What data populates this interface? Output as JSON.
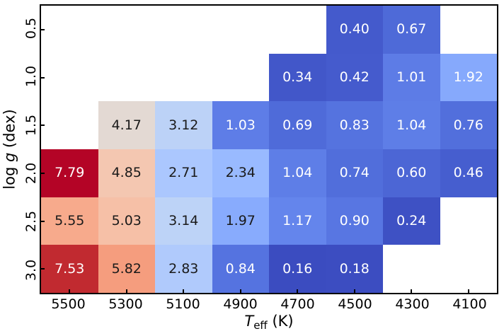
{
  "figure": {
    "background": "#ffffff",
    "border_color": "#000000",
    "tick_color": "#000000"
  },
  "axes": {
    "xlabel": {
      "main": "T",
      "sub": "eff",
      "unit": " (K)"
    },
    "ylabel": {
      "pre": "log ",
      "italic": "g",
      "post": " (dex)"
    },
    "x_ticks": [
      "5500",
      "5300",
      "5100",
      "4900",
      "4700",
      "4500",
      "4300",
      "4100"
    ],
    "y_ticks": [
      "0.5",
      "1.0",
      "1.5",
      "2.0",
      "2.5",
      "3.0"
    ]
  },
  "chart_data": {
    "type": "heatmap",
    "title": "",
    "xlabel": "Teff (K)",
    "ylabel": "log g (dex)",
    "x_categories": [
      "5500",
      "5300",
      "5100",
      "4900",
      "4700",
      "4500",
      "4300",
      "4100"
    ],
    "y_categories": [
      "0.5",
      "1.0",
      "1.5",
      "2.0",
      "2.5",
      "3.0"
    ],
    "colormap": "coolwarm",
    "color_scale": {
      "vmin": 0.16,
      "vmax": 7.79,
      "min_color": "#3b4cc0",
      "mid_color": "#dddddd",
      "max_color": "#b40426"
    },
    "values": [
      [
        null,
        null,
        null,
        null,
        null,
        0.4,
        0.67,
        null
      ],
      [
        null,
        null,
        null,
        null,
        0.34,
        0.42,
        1.01,
        1.92
      ],
      [
        null,
        4.17,
        3.12,
        1.03,
        0.69,
        0.83,
        1.04,
        0.76
      ],
      [
        7.79,
        4.85,
        2.71,
        2.34,
        1.04,
        0.74,
        0.6,
        0.46
      ],
      [
        5.55,
        5.03,
        3.14,
        1.97,
        1.17,
        0.9,
        0.24,
        null
      ],
      [
        7.53,
        5.82,
        2.83,
        0.84,
        0.16,
        0.18,
        null,
        null
      ]
    ],
    "cells": [
      [
        null,
        null,
        null,
        null,
        null,
        {
          "label": "0.40",
          "color": "#445acc",
          "text": "#ffffff"
        },
        {
          "label": "0.67",
          "color": "#4e6ad8",
          "text": "#ffffff"
        },
        null
      ],
      [
        null,
        null,
        null,
        null,
        {
          "label": "0.34",
          "color": "#4257c9",
          "text": "#ffffff"
        },
        {
          "label": "0.42",
          "color": "#455bcd",
          "text": "#ffffff"
        },
        {
          "label": "1.01",
          "color": "#5d7ce6",
          "text": "#ffffff"
        },
        {
          "label": "1.92",
          "color": "#86a9fc",
          "text": "#ffffff"
        }
      ],
      [
        null,
        {
          "label": "4.17",
          "color": "#e3d9d3",
          "text": "#1a1a1a"
        },
        {
          "label": "3.12",
          "color": "#bcd2f7",
          "text": "#1a1a1a"
        },
        {
          "label": "1.03",
          "color": "#5e7de7",
          "text": "#ffffff"
        },
        {
          "label": "0.69",
          "color": "#4f6bd9",
          "text": "#ffffff"
        },
        {
          "label": "0.83",
          "color": "#5573df",
          "text": "#ffffff"
        },
        {
          "label": "1.04",
          "color": "#5e7ee7",
          "text": "#ffffff"
        },
        {
          "label": "0.76",
          "color": "#526fdc",
          "text": "#ffffff"
        }
      ],
      [
        {
          "label": "7.79",
          "color": "#b40426",
          "text": "#ffffff"
        },
        {
          "label": "4.85",
          "color": "#f4c7b1",
          "text": "#1a1a1a"
        },
        {
          "label": "2.71",
          "color": "#abc7fe",
          "text": "#1a1a1a"
        },
        {
          "label": "2.34",
          "color": "#99baff",
          "text": "#1a1a1a"
        },
        {
          "label": "1.04",
          "color": "#5e7ee7",
          "text": "#ffffff"
        },
        {
          "label": "0.74",
          "color": "#516edb",
          "text": "#ffffff"
        },
        {
          "label": "0.60",
          "color": "#4c66d5",
          "text": "#ffffff"
        },
        {
          "label": "0.46",
          "color": "#465ecf",
          "text": "#ffffff"
        }
      ],
      [
        {
          "label": "5.55",
          "color": "#f7aa8c",
          "text": "#1a1a1a"
        },
        {
          "label": "5.03",
          "color": "#f6c0a7",
          "text": "#1a1a1a"
        },
        {
          "label": "3.14",
          "color": "#bdd3f7",
          "text": "#1a1a1a"
        },
        {
          "label": "1.97",
          "color": "#88abfd",
          "text": "#1a1a1a"
        },
        {
          "label": "1.17",
          "color": "#6485ec",
          "text": "#ffffff"
        },
        {
          "label": "0.90",
          "color": "#5876e2",
          "text": "#ffffff"
        },
        {
          "label": "0.24",
          "color": "#3e51c4",
          "text": "#ffffff"
        },
        null
      ],
      [
        {
          "label": "7.53",
          "color": "#c12a30",
          "text": "#ffffff"
        },
        {
          "label": "5.82",
          "color": "#f59d7e",
          "text": "#1a1a1a"
        },
        {
          "label": "2.83",
          "color": "#b0cafc",
          "text": "#1a1a1a"
        },
        {
          "label": "0.84",
          "color": "#5573e0",
          "text": "#ffffff"
        },
        {
          "label": "0.16",
          "color": "#3b4cc0",
          "text": "#ffffff"
        },
        {
          "label": "0.18",
          "color": "#3c4dc1",
          "text": "#ffffff"
        },
        null,
        null
      ]
    ]
  }
}
